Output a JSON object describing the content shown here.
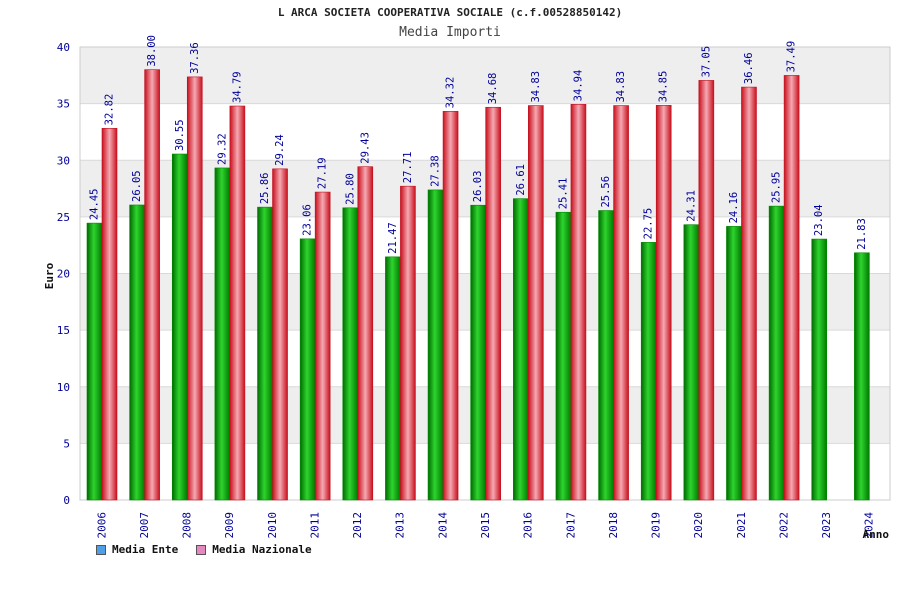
{
  "title": "L ARCA SOCIETA COOPERATIVA SOCIALE (c.f.00528850142)",
  "subtitle": "Media Importi",
  "legend": {
    "ente_label": "Media Ente",
    "nazionale_label": "Media Nazionale"
  },
  "colors": {
    "ente_swatch": "#4f9fe8",
    "nazionale_swatch": "#e588c2",
    "ente_bar": "#0ca90c",
    "nazionale_bar": "#e8202c",
    "axis_text": "#000099",
    "band": "#eeeeee"
  },
  "chart_data": {
    "type": "bar",
    "title": "L ARCA SOCIETA COOPERATIVA SOCIALE (c.f.00528850142)",
    "subtitle": "Media Importi",
    "xlabel": "Anno",
    "ylabel": "Euro",
    "ylim": [
      0,
      40
    ],
    "yticks": [
      0,
      5,
      10,
      15,
      20,
      25,
      30,
      35,
      40
    ],
    "grid": true,
    "legend_placement": "bottom-left",
    "categories": [
      "2006",
      "2007",
      "2008",
      "2009",
      "2010",
      "2011",
      "2012",
      "2013",
      "2014",
      "2015",
      "2016",
      "2017",
      "2018",
      "2019",
      "2020",
      "2021",
      "2022",
      "2023",
      "2024"
    ],
    "series": [
      {
        "name": "Media Ente",
        "values": [
          24.45,
          26.05,
          30.55,
          29.32,
          25.86,
          23.06,
          25.8,
          21.47,
          27.38,
          26.03,
          26.61,
          25.41,
          25.56,
          22.75,
          24.31,
          24.16,
          25.95,
          23.04,
          21.83
        ],
        "labels": [
          "24.45",
          "26.05",
          "30.55",
          "29.32",
          "25.86",
          "23.06",
          "25.80",
          "21.47",
          "27.38",
          "26.03",
          "26.61",
          "25.41",
          "25.56",
          "22.75",
          "24.31",
          "24.16",
          "25.95",
          "23.04",
          "21.83"
        ]
      },
      {
        "name": "Media Nazionale",
        "values": [
          32.82,
          38.0,
          37.36,
          34.79,
          29.24,
          27.19,
          29.43,
          27.71,
          34.32,
          34.68,
          34.83,
          34.94,
          34.83,
          34.85,
          37.05,
          36.46,
          37.49,
          null,
          null
        ],
        "labels": [
          "32.82",
          "38.00",
          "37.36",
          "34.79",
          "29.24",
          "27.19",
          "29.43",
          "27.71",
          "34.32",
          "34.68",
          "34.83",
          "34.94",
          "34.83",
          "34.85",
          "37.05",
          "36.46",
          "37.49",
          "",
          ""
        ]
      }
    ]
  }
}
